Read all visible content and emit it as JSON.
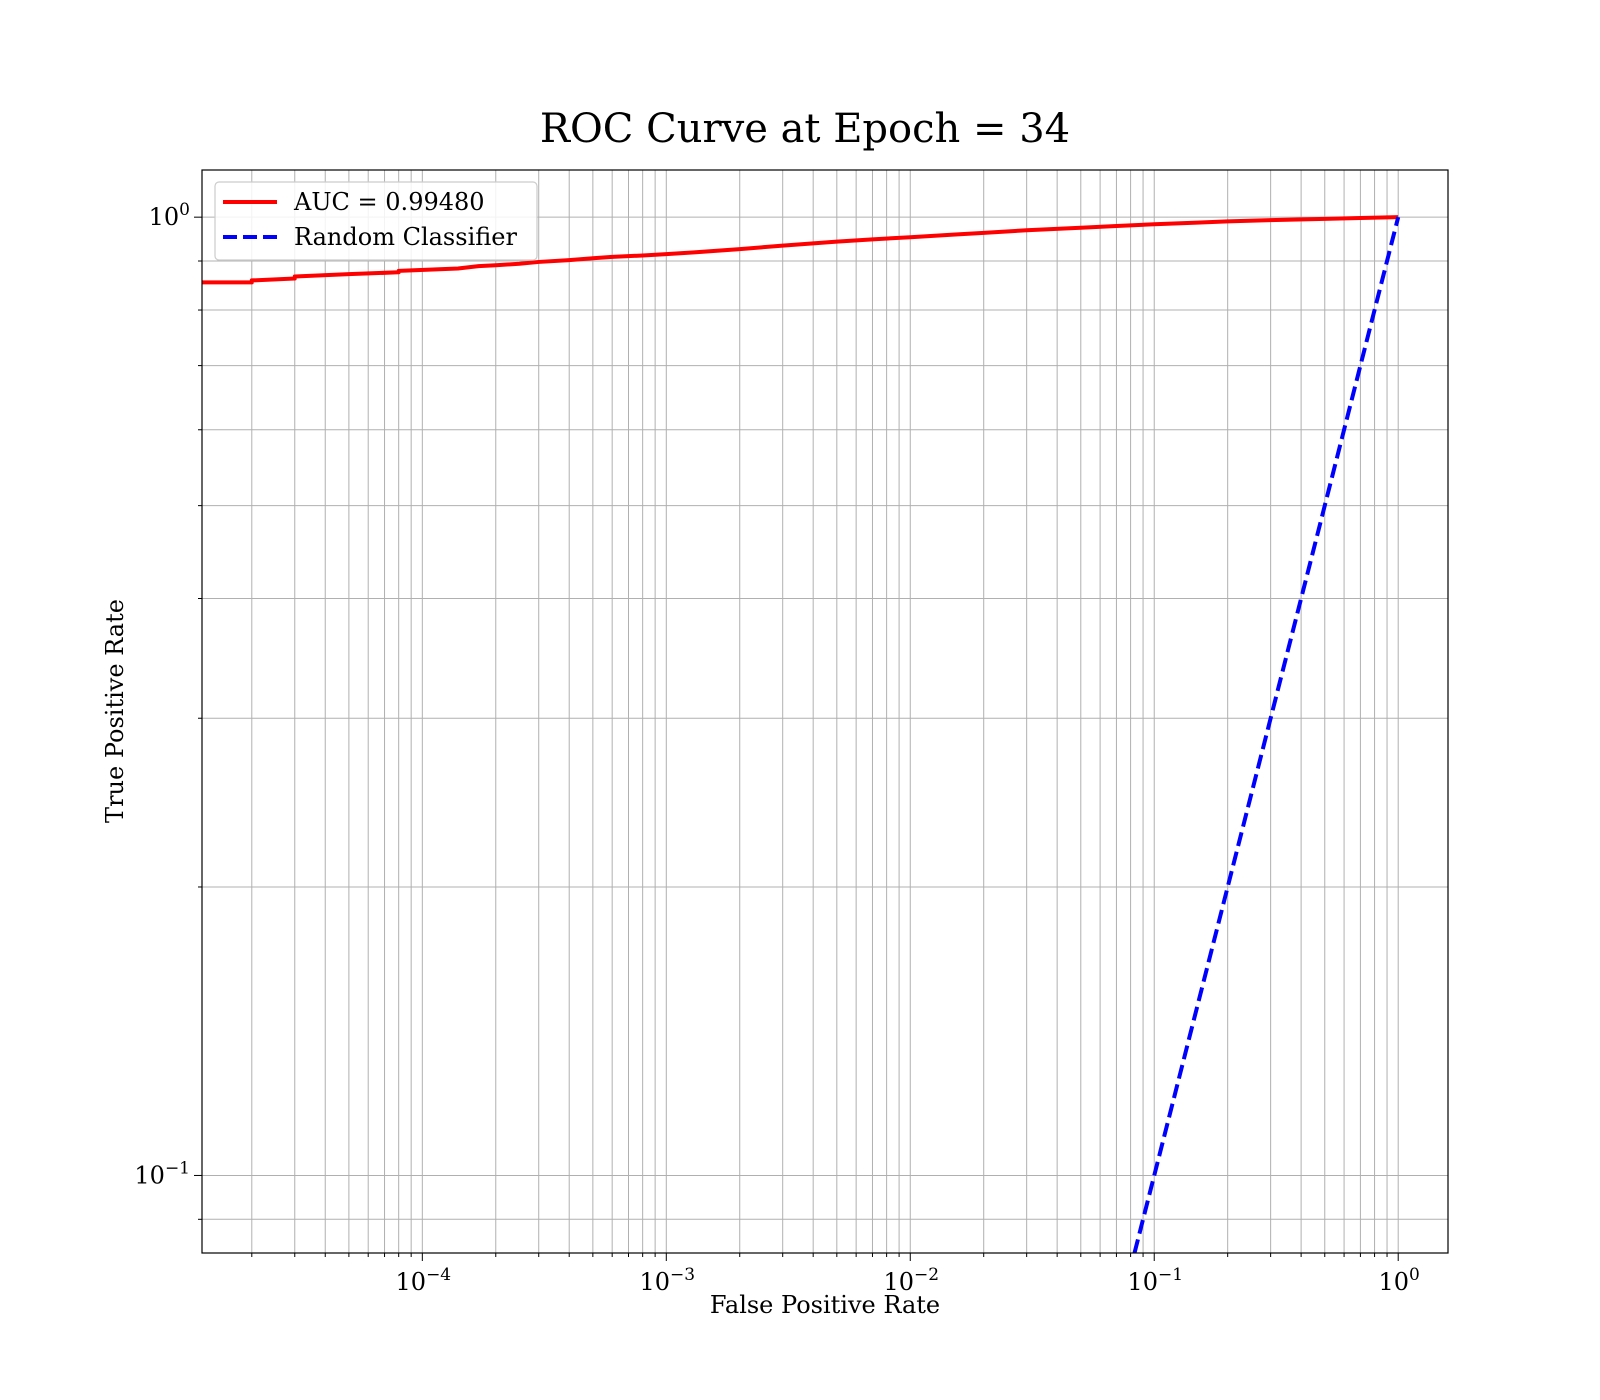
{
  "chart_data": {
    "type": "line",
    "title": "ROC Curve at Epoch = 34",
    "xlabel": "False Positive Rate",
    "ylabel": "True Positive Rate",
    "xscale": "log",
    "yscale": "log",
    "xlim": [
      1.25e-05,
      1.6
    ],
    "ylim": [
      0.083,
      1.12
    ],
    "grid": true,
    "grid_minor": true,
    "legend_position": "top-left",
    "x_ticks": [
      {
        "value": 0.0001,
        "base": "10",
        "exp": "−4"
      },
      {
        "value": 0.001,
        "base": "10",
        "exp": "−3"
      },
      {
        "value": 0.01,
        "base": "10",
        "exp": "−2"
      },
      {
        "value": 0.1,
        "base": "10",
        "exp": "−1"
      },
      {
        "value": 1,
        "base": "10",
        "exp": "0"
      }
    ],
    "y_ticks": [
      {
        "value": 0.1,
        "base": "10",
        "exp": "−1"
      },
      {
        "value": 1,
        "base": "10",
        "exp": "0"
      }
    ],
    "series": [
      {
        "name": "AUC = 0.99480",
        "color": "#ff0000",
        "dash": "solid",
        "x": [
          1.25e-05,
          2e-05,
          2e-05,
          3e-05,
          3e-05,
          5e-05,
          8e-05,
          8e-05,
          0.00014,
          0.00017,
          0.0002,
          0.00025,
          0.0003,
          0.0004,
          0.0005,
          0.0006,
          0.0008,
          0.001,
          0.0013,
          0.002,
          0.003,
          0.004,
          0.005,
          0.007,
          0.01,
          0.015,
          0.02,
          0.03,
          0.05,
          0.07,
          0.1,
          0.15,
          0.2,
          0.3,
          0.5,
          0.7,
          1.0
        ],
        "y": [
          0.855,
          0.855,
          0.859,
          0.863,
          0.867,
          0.872,
          0.876,
          0.879,
          0.884,
          0.889,
          0.891,
          0.894,
          0.898,
          0.902,
          0.906,
          0.909,
          0.912,
          0.915,
          0.919,
          0.926,
          0.934,
          0.939,
          0.943,
          0.948,
          0.953,
          0.959,
          0.963,
          0.969,
          0.975,
          0.979,
          0.983,
          0.987,
          0.99,
          0.993,
          0.996,
          0.998,
          1.0
        ]
      },
      {
        "name": "Random Classifier",
        "color": "#0000ff",
        "dash": "dashed",
        "x": [
          0.083,
          1.0
        ],
        "y": [
          0.083,
          1.0
        ]
      }
    ]
  }
}
